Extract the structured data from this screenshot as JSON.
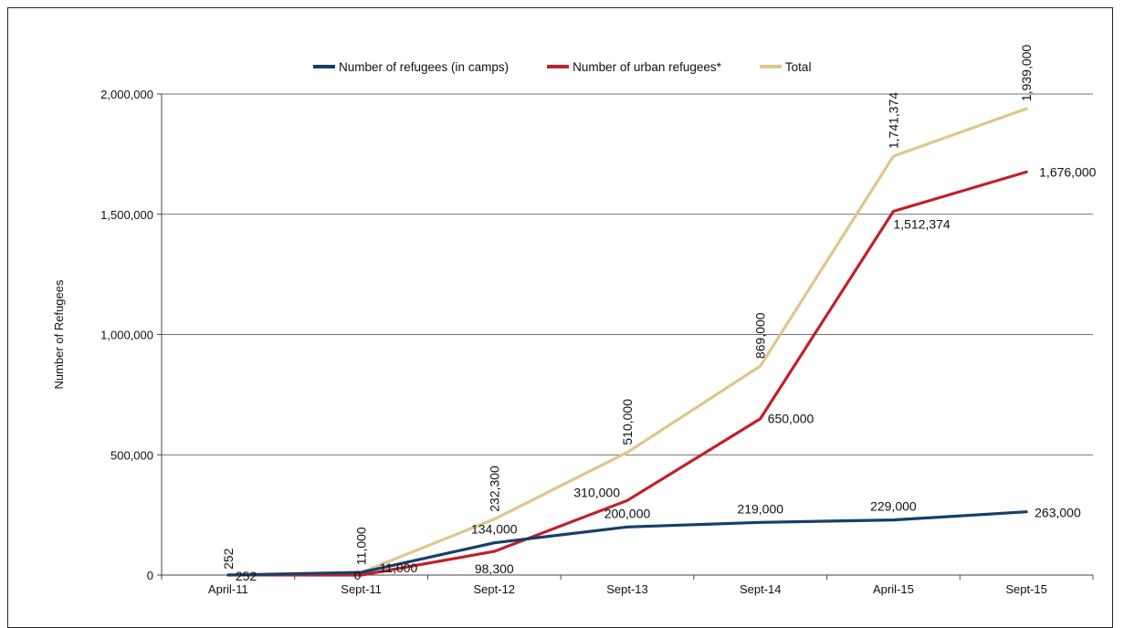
{
  "chart_data": {
    "type": "line",
    "title": "",
    "xlabel": "",
    "ylabel": "Number of Refugees",
    "ylim": [
      0,
      2000000
    ],
    "yticks": [
      0,
      500000,
      1000000,
      1500000,
      2000000
    ],
    "ytick_labels": [
      "0",
      "500,000",
      "1,000,000",
      "1,500,000",
      "2,000,000"
    ],
    "grid": "horizontal",
    "legend_position": "top-center",
    "categories": [
      "April-11",
      "Sept-11",
      "Sept-12",
      "Sept-13",
      "Sept-14",
      "April-15",
      "Sept-15"
    ],
    "series": [
      {
        "name": "Number of refugees (in camps)",
        "color": "#163f6b",
        "values": [
          0,
          11000,
          134000,
          200000,
          219000,
          229000,
          263000
        ],
        "labels": [
          "",
          "11,000",
          "134,000",
          "200,000",
          "219,000",
          "229,000",
          "263,000"
        ]
      },
      {
        "name": "Number of urban refugees*",
        "color": "#c0202b",
        "values": [
          252,
          0,
          98300,
          310000,
          650000,
          1512374,
          1676000
        ],
        "labels": [
          "252",
          "0",
          "98,300",
          "310,000",
          "650,000",
          "1,512,374",
          "1,676,000"
        ]
      },
      {
        "name": "Total",
        "color": "#e0c68c",
        "values": [
          252,
          11000,
          232300,
          510000,
          869000,
          1741374,
          1939000
        ],
        "labels": [
          "252",
          "11,000",
          "232,300",
          "510,000",
          "869,000",
          "1,741,374",
          "1,939,000"
        ]
      }
    ]
  }
}
